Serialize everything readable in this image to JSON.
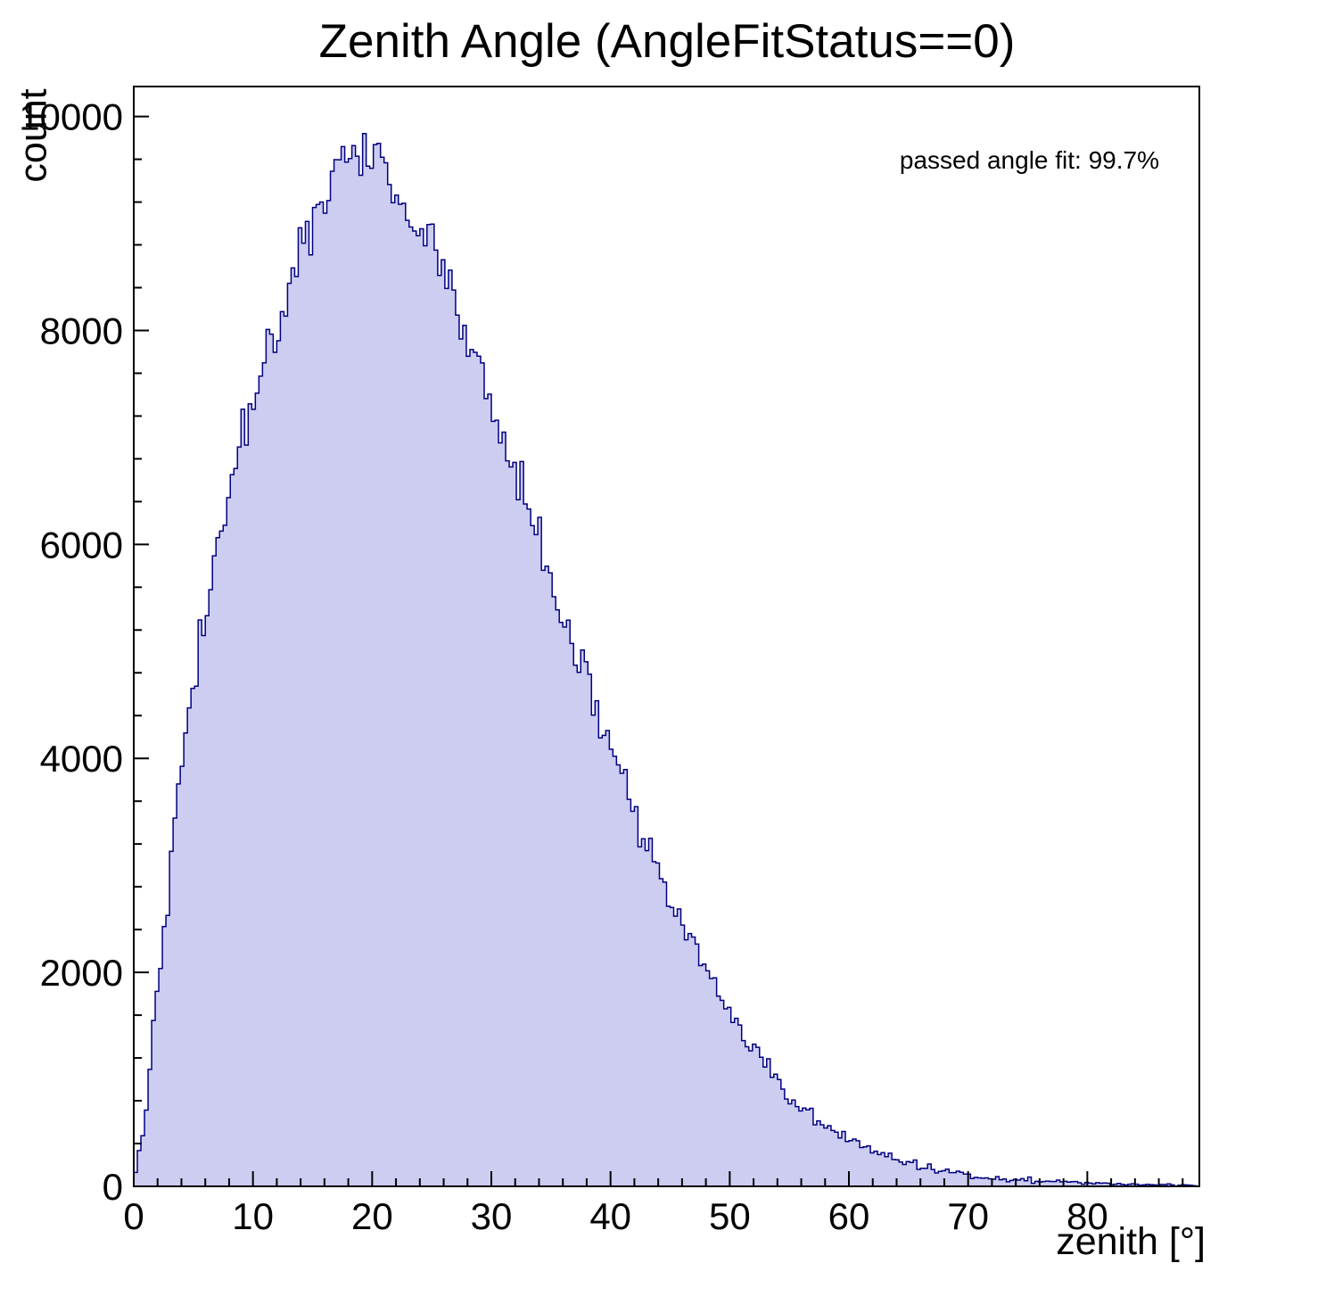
{
  "page": {
    "background": "#ffffff"
  },
  "chart_data": {
    "type": "histogram",
    "title": "Zenith Angle (AngleFitStatus==0)",
    "xlabel": "zenith [°]",
    "ylabel": "count",
    "annotation": "passed angle fit: 99.7%",
    "legend": "none",
    "grid": false,
    "xlim": [
      0,
      89.4
    ],
    "ylim": [
      0,
      10280
    ],
    "x_major_ticks": [
      0,
      10,
      20,
      30,
      40,
      50,
      60,
      70,
      80
    ],
    "x_minor_step": 2,
    "y_major_ticks": [
      0,
      2000,
      4000,
      6000,
      8000,
      10000
    ],
    "y_minor_step": 400,
    "bin_width_deg": 0.3,
    "anchors_start_deg": 0,
    "anchors_step_deg": 1,
    "anchors_count": [
      50,
      700,
      1900,
      2950,
      3850,
      4650,
      5350,
      6000,
      6500,
      6950,
      7300,
      7650,
      8000,
      8450,
      8800,
      9050,
      9300,
      9500,
      9650,
      9600,
      9550,
      9450,
      9350,
      9150,
      8950,
      8800,
      8550,
      8250,
      7950,
      7650,
      7250,
      6950,
      6650,
      6350,
      6050,
      5700,
      5350,
      5000,
      4700,
      4400,
      4100,
      3800,
      3500,
      3200,
      2950,
      2700,
      2450,
      2250,
      2000,
      1800,
      1600,
      1430,
      1270,
      1120,
      980,
      850,
      740,
      640,
      560,
      490,
      430,
      380,
      330,
      290,
      250,
      220,
      190,
      165,
      145,
      125,
      110,
      95,
      85,
      75,
      65,
      58,
      50,
      45,
      40,
      35,
      30,
      27,
      24,
      21,
      18,
      16,
      14,
      12,
      10,
      8
    ],
    "noise_sigma_scale": 1.5,
    "noise_seed": 42,
    "peak_count_approx": 9800,
    "peak_zenith_deg_approx": 18,
    "fill_color": "#cdcdf2",
    "line_color": "#000080",
    "axis_color": "#000000"
  }
}
